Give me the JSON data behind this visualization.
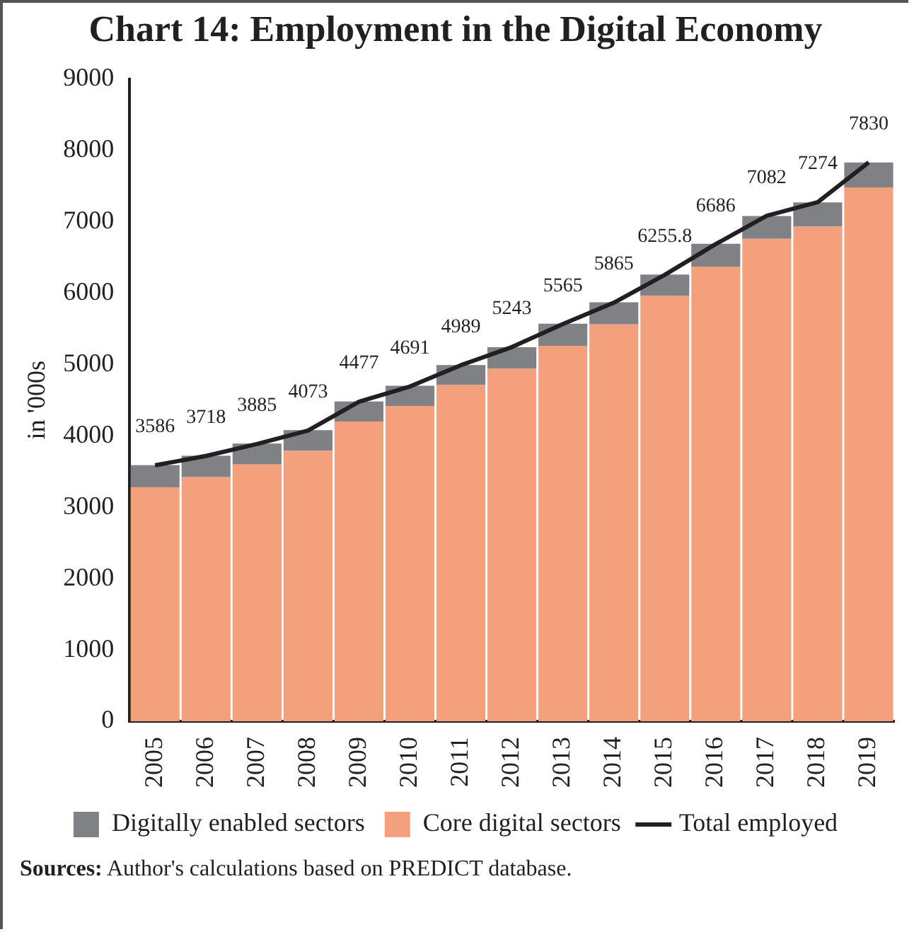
{
  "chart_data": {
    "type": "bar",
    "title": "Chart 14: Employment in the Digital Economy",
    "ylabel": "in '000s",
    "categories": [
      "2005",
      "2006",
      "2007",
      "2008",
      "2009",
      "2010",
      "2011",
      "2012",
      "2013",
      "2014",
      "2015",
      "2016",
      "2017",
      "2018",
      "2019"
    ],
    "stacked": true,
    "series": [
      {
        "name": "Core digital sectors",
        "color": "#f4a07c",
        "values": [
          3280,
          3420,
          3600,
          3790,
          4200,
          4420,
          4710,
          4940,
          5260,
          5560,
          5960,
          6370,
          6760,
          6930,
          7480
        ]
      },
      {
        "name": "Digitally enabled sectors",
        "color": "#808184",
        "values": [
          310,
          300,
          290,
          290,
          280,
          280,
          280,
          300,
          310,
          310,
          300,
          320,
          320,
          340,
          350
        ]
      },
      {
        "name": "Total employed",
        "type": "line",
        "color": "#231f20",
        "values": [
          3586,
          3718,
          3885,
          4073,
          4477,
          4691,
          4989,
          5243,
          5565,
          5865,
          6255.8,
          6686,
          7082,
          7274,
          7830
        ],
        "value_labels": [
          "3586",
          "3718",
          "3885",
          "4073",
          "4477",
          "4691",
          "4989",
          "5243",
          "5565",
          "5865",
          "6255.8",
          "6686",
          "7082",
          "7274",
          "7830"
        ]
      }
    ],
    "ylim": [
      0,
      9000
    ],
    "yticks": [
      0,
      1000,
      2000,
      3000,
      4000,
      5000,
      6000,
      7000,
      8000,
      9000
    ],
    "grid": false,
    "legend": "bottom",
    "marker": "none",
    "annotations": [
      "Sources: Author's calculations based on PREDICT database."
    ]
  }
}
